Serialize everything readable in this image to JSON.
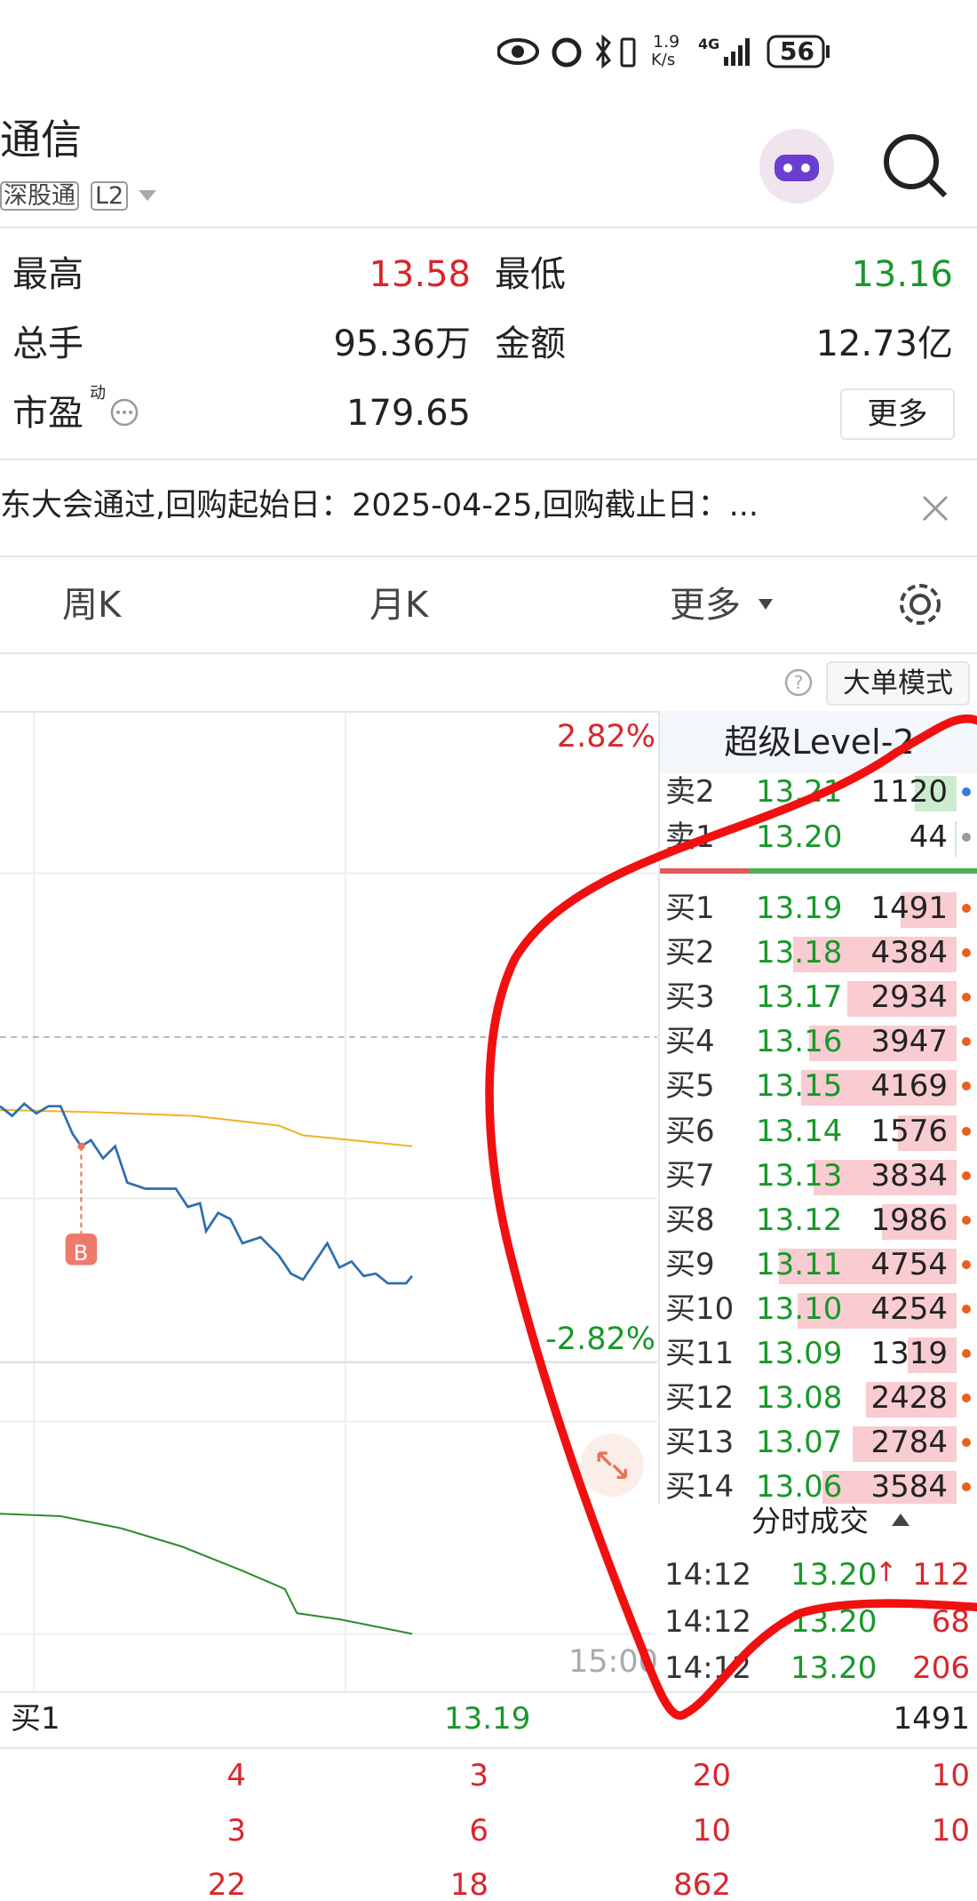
{
  "status_bar": {
    "speed": "1.9",
    "speed_unit": "K/s",
    "network": "4G",
    "battery": "56"
  },
  "header": {
    "title": "通信",
    "tags": [
      "深股通",
      "L2"
    ]
  },
  "stats": {
    "high_label": "最高",
    "high": "13.58",
    "low_label": "最低",
    "low": "13.16",
    "volume_label": "总手",
    "volume": "95.36万",
    "amount_label": "金额",
    "amount": "12.73亿",
    "pe_label": "市盈",
    "pe_sup": "动",
    "pe": "179.65",
    "more": "更多"
  },
  "notice": "东大会通过,回购起始日：2025-04-25,回购截止日：...",
  "tabs": [
    "周K",
    "月K",
    "更多"
  ],
  "chart": {
    "mode_button": "大单模式",
    "upper_pct": "2.82%",
    "lower_pct": "-2.82%",
    "end_time": "15:00",
    "marker": "B"
  },
  "order_book": {
    "title": "超级Level-2",
    "asks": [
      {
        "label": "卖2",
        "price": "13.21",
        "volume": 1120
      },
      {
        "label": "卖1",
        "price": "13.20",
        "volume": 44
      }
    ],
    "bids": [
      {
        "label": "买1",
        "price": "13.19",
        "volume": 1491
      },
      {
        "label": "买2",
        "price": "13.18",
        "volume": 4384
      },
      {
        "label": "买3",
        "price": "13.17",
        "volume": 2934
      },
      {
        "label": "买4",
        "price": "13.16",
        "volume": 3947
      },
      {
        "label": "买5",
        "price": "13.15",
        "volume": 4169
      },
      {
        "label": "买6",
        "price": "13.14",
        "volume": 1576
      },
      {
        "label": "买7",
        "price": "13.13",
        "volume": 3834
      },
      {
        "label": "买8",
        "price": "13.12",
        "volume": 1986
      },
      {
        "label": "买9",
        "price": "13.11",
        "volume": 4754
      },
      {
        "label": "买10",
        "price": "13.10",
        "volume": 4254
      },
      {
        "label": "买11",
        "price": "13.09",
        "volume": 1319
      },
      {
        "label": "买12",
        "price": "13.08",
        "volume": 2428
      },
      {
        "label": "买13",
        "price": "13.07",
        "volume": 2784
      },
      {
        "label": "买14",
        "price": "13.06",
        "volume": 3584
      }
    ]
  },
  "trades": {
    "title": "分时成交",
    "rows": [
      {
        "time": "14:12",
        "price": "13.20",
        "arrow": "↑",
        "volume": "112"
      },
      {
        "time": "14:12",
        "price": "13.20",
        "volume": "68"
      },
      {
        "time": "14:12",
        "price": "13.20",
        "volume": "206"
      }
    ]
  },
  "bottom": {
    "label": "买1",
    "price": "13.19",
    "volume": "1491",
    "rows": [
      [
        4,
        3,
        20,
        10
      ],
      [
        3,
        6,
        10,
        10
      ],
      [
        22,
        18,
        862
      ]
    ]
  }
}
